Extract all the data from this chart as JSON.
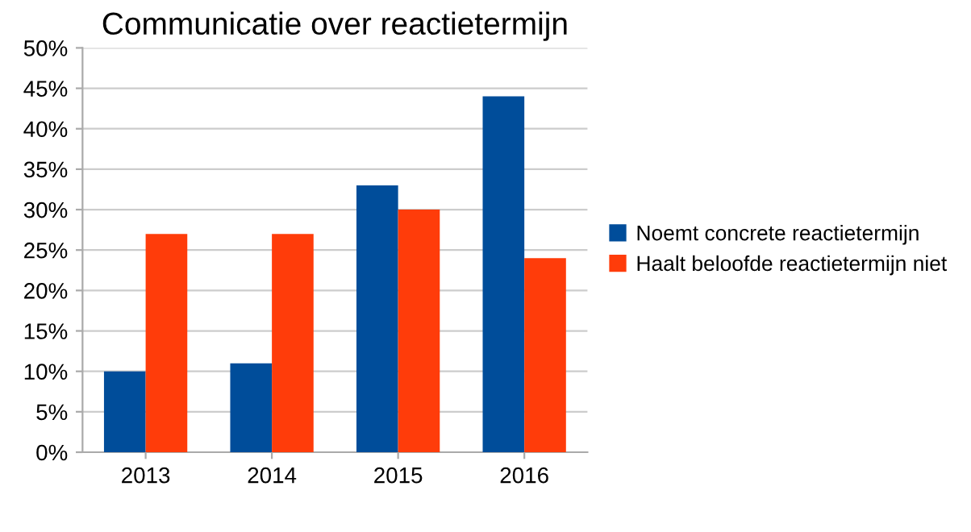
{
  "chart_data": {
    "type": "bar",
    "title": "Communicatie over reactietermijn",
    "categories": [
      "2013",
      "2014",
      "2015",
      "2016"
    ],
    "series": [
      {
        "name": "Noemt concrete reactietermijn",
        "color": "#004d9a",
        "values": [
          10,
          11,
          33,
          44
        ]
      },
      {
        "name": "Haalt beloofde reactietermijn niet",
        "color": "#ff3c0a",
        "values": [
          27,
          27,
          30,
          24
        ]
      }
    ],
    "ylim": [
      0,
      50
    ],
    "yticks": [
      {
        "value": 0,
        "label": "0%"
      },
      {
        "value": 5,
        "label": "5%"
      },
      {
        "value": 10,
        "label": "10%"
      },
      {
        "value": 15,
        "label": "15%"
      },
      {
        "value": 20,
        "label": "20%"
      },
      {
        "value": 25,
        "label": "25%"
      },
      {
        "value": 30,
        "label": "30%"
      },
      {
        "value": 35,
        "label": "35%"
      },
      {
        "value": 40,
        "label": "40%"
      },
      {
        "value": 45,
        "label": "45%"
      },
      {
        "value": 50,
        "label": "50%"
      }
    ],
    "grid": "y",
    "legend": "right"
  }
}
